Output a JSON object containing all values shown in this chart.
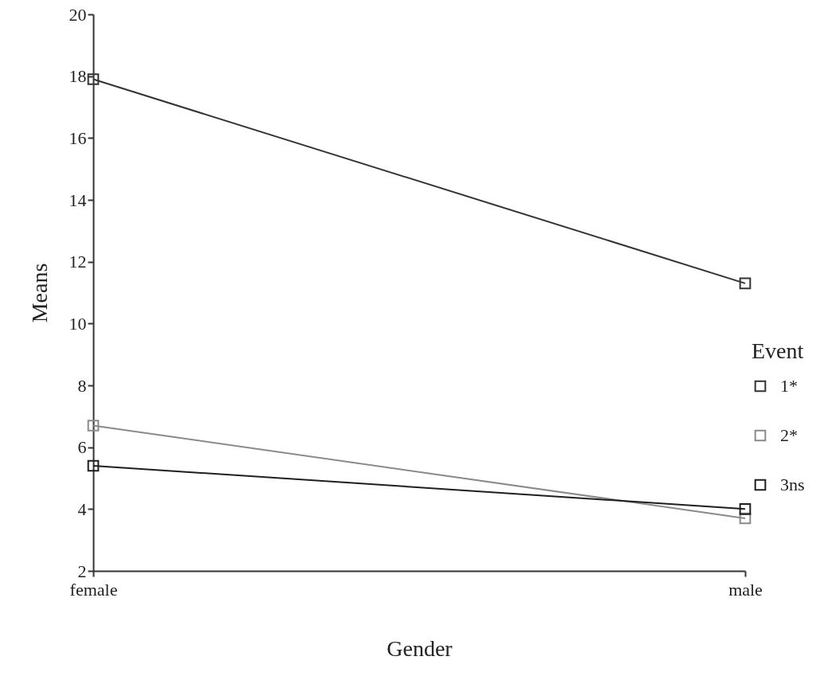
{
  "chart_data": {
    "type": "line",
    "xlabel": "Gender",
    "ylabel": "Means",
    "legend_title": "Event",
    "categories": [
      "female",
      "male"
    ],
    "series": [
      {
        "name": "1*",
        "color": "#333333",
        "values": [
          17.9,
          11.3
        ]
      },
      {
        "name": "2*",
        "color": "#8a8a8a",
        "values": [
          6.7,
          3.7
        ]
      },
      {
        "name": "3ns",
        "color": "#1e1e1e",
        "values": [
          5.4,
          4.0
        ]
      }
    ],
    "ylim": [
      2,
      20
    ],
    "yticks": [
      2,
      4,
      6,
      8,
      10,
      12,
      14,
      16,
      18,
      20
    ],
    "grid": false,
    "legend": "right",
    "marker": "square",
    "line_style": "solid"
  }
}
